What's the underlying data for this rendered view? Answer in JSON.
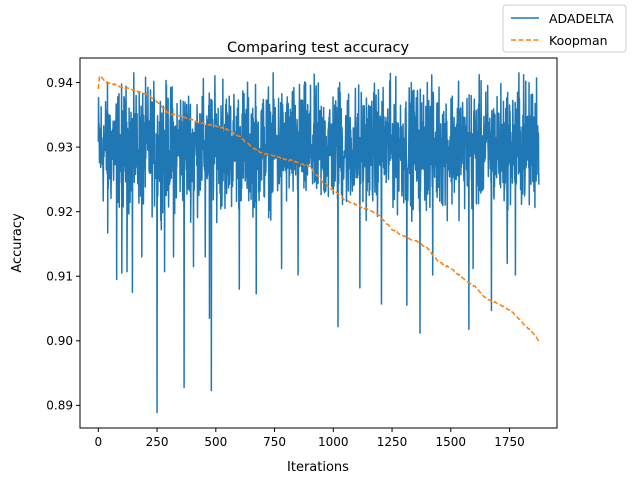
{
  "chart_data": {
    "type": "line",
    "title": "Comparing test accuracy",
    "xlabel": "Iterations",
    "ylabel": "Accuracy",
    "xlim": [
      -78,
      1952
    ],
    "ylim": [
      0.8865,
      0.9438
    ],
    "xticks": [
      0,
      250,
      500,
      750,
      1000,
      1250,
      1500,
      1750
    ],
    "yticks": [
      0.89,
      0.9,
      0.91,
      0.92,
      0.93,
      0.94
    ],
    "ytick_labels": [
      "0.89",
      "0.90",
      "0.91",
      "0.92",
      "0.93",
      "0.94"
    ],
    "legend_position": "top-right",
    "grid": false,
    "series": [
      {
        "name": "ADADELTA",
        "color": "#1f77b4",
        "style": "solid",
        "generator": "noisy",
        "n_points": 1876,
        "x_start": 0,
        "x_end": 1875,
        "center": 0.93,
        "spread": 0.0045,
        "clamp": [
          0.914,
          0.9415
        ],
        "dips": [
          {
            "x": 40,
            "y": 0.9167
          },
          {
            "x": 78,
            "y": 0.9095
          },
          {
            "x": 100,
            "y": 0.9105
          },
          {
            "x": 122,
            "y": 0.9107
          },
          {
            "x": 145,
            "y": 0.9075
          },
          {
            "x": 185,
            "y": 0.913
          },
          {
            "x": 250,
            "y": 0.8889
          },
          {
            "x": 282,
            "y": 0.9107
          },
          {
            "x": 320,
            "y": 0.913
          },
          {
            "x": 365,
            "y": 0.8928
          },
          {
            "x": 405,
            "y": 0.9115
          },
          {
            "x": 455,
            "y": 0.913
          },
          {
            "x": 473,
            "y": 0.9035
          },
          {
            "x": 481,
            "y": 0.8923
          },
          {
            "x": 600,
            "y": 0.908
          },
          {
            "x": 672,
            "y": 0.9073
          },
          {
            "x": 780,
            "y": 0.9112
          },
          {
            "x": 850,
            "y": 0.9102
          },
          {
            "x": 1020,
            "y": 0.9022
          },
          {
            "x": 1113,
            "y": 0.9082
          },
          {
            "x": 1205,
            "y": 0.9057
          },
          {
            "x": 1313,
            "y": 0.9055
          },
          {
            "x": 1369,
            "y": 0.9012
          },
          {
            "x": 1423,
            "y": 0.9102
          },
          {
            "x": 1577,
            "y": 0.9018
          },
          {
            "x": 1595,
            "y": 0.9112
          },
          {
            "x": 1673,
            "y": 0.9047
          },
          {
            "x": 1740,
            "y": 0.912
          },
          {
            "x": 1775,
            "y": 0.9102
          }
        ],
        "peaks": [
          {
            "x": 530,
            "y": 0.9405
          },
          {
            "x": 1027,
            "y": 0.94
          },
          {
            "x": 1240,
            "y": 0.9402
          },
          {
            "x": 1400,
            "y": 0.94
          },
          {
            "x": 1533,
            "y": 0.9402
          },
          {
            "x": 1790,
            "y": 0.9415
          },
          {
            "x": 1810,
            "y": 0.9412
          },
          {
            "x": 1865,
            "y": 0.9407
          }
        ]
      },
      {
        "name": "Koopman",
        "color": "#ff7f0e",
        "style": "dashed",
        "generator": "piecewise",
        "anchors": [
          [
            0,
            0.939
          ],
          [
            5,
            0.941
          ],
          [
            15,
            0.9408
          ],
          [
            30,
            0.94
          ],
          [
            60,
            0.9398
          ],
          [
            100,
            0.9393
          ],
          [
            140,
            0.939
          ],
          [
            180,
            0.9385
          ],
          [
            220,
            0.9379
          ],
          [
            250,
            0.937
          ],
          [
            300,
            0.9352
          ],
          [
            350,
            0.9348
          ],
          [
            400,
            0.9342
          ],
          [
            450,
            0.9336
          ],
          [
            500,
            0.9333
          ],
          [
            550,
            0.9327
          ],
          [
            600,
            0.9317
          ],
          [
            650,
            0.93
          ],
          [
            700,
            0.929
          ],
          [
            750,
            0.9287
          ],
          [
            800,
            0.9281
          ],
          [
            850,
            0.9276
          ],
          [
            900,
            0.927
          ],
          [
            950,
            0.9248
          ],
          [
            1000,
            0.9233
          ],
          [
            1050,
            0.9218
          ],
          [
            1100,
            0.921
          ],
          [
            1150,
            0.9203
          ],
          [
            1200,
            0.9193
          ],
          [
            1250,
            0.9172
          ],
          [
            1300,
            0.9162
          ],
          [
            1350,
            0.9155
          ],
          [
            1400,
            0.9144
          ],
          [
            1450,
            0.9122
          ],
          [
            1500,
            0.9112
          ],
          [
            1550,
            0.9098
          ],
          [
            1600,
            0.9085
          ],
          [
            1650,
            0.9065
          ],
          [
            1700,
            0.9058
          ],
          [
            1750,
            0.9048
          ],
          [
            1800,
            0.903
          ],
          [
            1850,
            0.9012
          ],
          [
            1875,
            0.9
          ]
        ]
      }
    ]
  }
}
